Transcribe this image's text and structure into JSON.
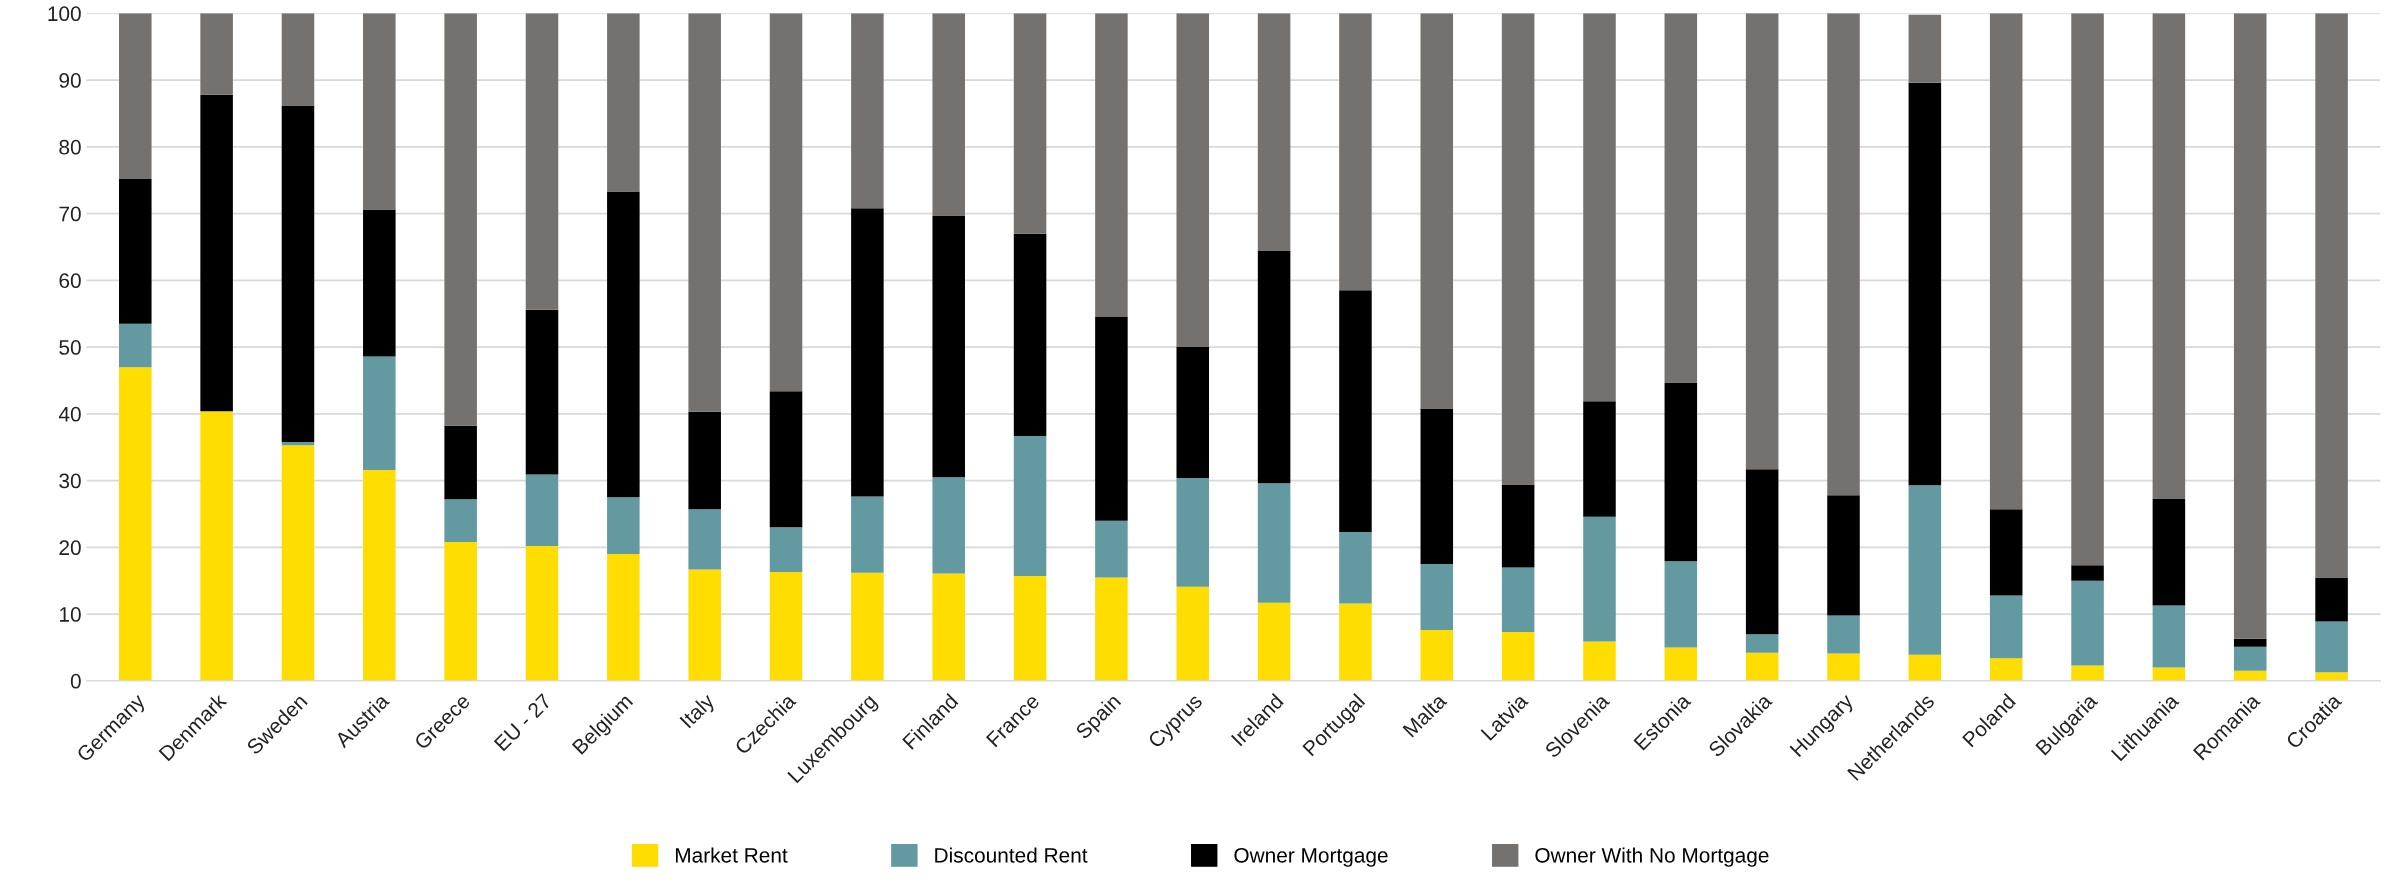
{
  "chart_data": {
    "type": "bar",
    "stacked": true,
    "categories": [
      "Germany",
      "Denmark",
      "Sweden",
      "Austria",
      "Greece",
      "EU - 27",
      "Belgium",
      "Italy",
      "Czechia",
      "Luxembourg",
      "Finland",
      "France",
      "Spain",
      "Cyprus",
      "Ireland",
      "Portugal",
      "Malta",
      "Latvia",
      "Slovenia",
      "Estonia",
      "Slovakia",
      "Hungary",
      "Netherlands",
      "Poland",
      "Bulgaria",
      "Lithuania",
      "Romania",
      "Croatia"
    ],
    "series": [
      {
        "name": "Market Rent",
        "color": "#ffdd00",
        "values": [
          47,
          40.4,
          35.3,
          31.6,
          20.8,
          20.2,
          19,
          16.7,
          16.3,
          16.2,
          16.1,
          15.7,
          15.5,
          14.1,
          11.7,
          11.6,
          7.6,
          7.3,
          5.9,
          5,
          4.2,
          4.1,
          3.9,
          3.4,
          2.3,
          2,
          1.5,
          1.3
        ]
      },
      {
        "name": "Discounted Rent",
        "color": "#6399a1",
        "values": [
          6.5,
          0,
          0.5,
          17,
          6.4,
          10.7,
          8.5,
          9,
          6.7,
          11.4,
          14.4,
          21,
          8.5,
          16.3,
          17.9,
          10.7,
          9.9,
          9.7,
          18.7,
          12.9,
          2.8,
          5.7,
          25.4,
          9.4,
          12.7,
          9.3,
          3.6,
          7.6
        ]
      },
      {
        "name": "Owner Mortgage",
        "color": "#000000",
        "values": [
          21.7,
          47.4,
          50.4,
          22,
          11,
          24.7,
          45.8,
          14.6,
          20.4,
          43.2,
          39.2,
          30.3,
          30.5,
          19.6,
          34.8,
          36.2,
          23.3,
          12.4,
          17.3,
          26.8,
          24.7,
          18,
          60.3,
          12.9,
          2.3,
          16,
          1.2,
          6.6
        ]
      },
      {
        "name": "Owner With No Mortgage",
        "color": "#75716f",
        "values": [
          24.8,
          12.2,
          13.8,
          29.4,
          61.8,
          44.4,
          26.7,
          59.7,
          56.6,
          29.2,
          30.3,
          33,
          45.5,
          50,
          35.6,
          41.5,
          59.2,
          70.6,
          58.1,
          55.3,
          68.3,
          72.2,
          10.2,
          74.3,
          82.7,
          72.7,
          93.7,
          84.5
        ]
      }
    ],
    "ylim": [
      0,
      100
    ],
    "yticks": [
      0,
      10,
      20,
      30,
      40,
      50,
      60,
      70,
      80,
      90,
      100
    ],
    "grid": "y",
    "legend": "bottom"
  }
}
